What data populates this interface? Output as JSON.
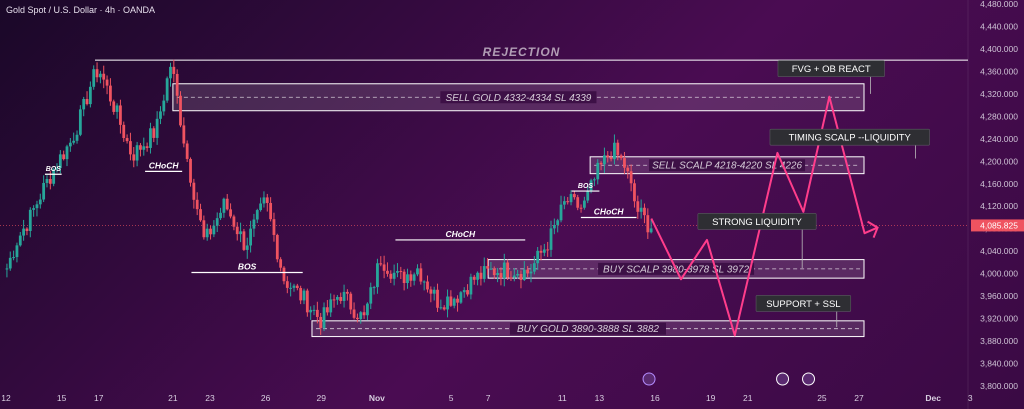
{
  "header": {
    "title": "Gold Spot / U.S. Dollar · 4h · OANDA"
  },
  "colors": {
    "up": "#27a69a",
    "down": "#ef5360",
    "zone_fill": "rgba(255,255,255,0.13)",
    "zone_border": "#ffffff",
    "path": "#ff3d8b",
    "price_badge": "#ef5360"
  },
  "chart_data": {
    "type": "candlestick",
    "ylim": [
      3800,
      4480
    ],
    "yticks": [
      "4,480.000",
      "4,440.000",
      "4,400.000",
      "4,360.000",
      "4,320.000",
      "4,280.000",
      "4,240.000",
      "4,200.000",
      "4,160.000",
      "4,120.000",
      "4,080.000",
      "4,040.000",
      "4,000.000",
      "3,960.000",
      "3,920.000",
      "3,880.000",
      "3,840.000",
      "3,800.000"
    ],
    "xticks": [
      {
        "label": "12",
        "day": 12
      },
      {
        "label": "15",
        "day": 15
      },
      {
        "label": "17",
        "day": 17
      },
      {
        "label": "21",
        "day": 21
      },
      {
        "label": "23",
        "day": 23
      },
      {
        "label": "26",
        "day": 26
      },
      {
        "label": "29",
        "day": 29
      },
      {
        "label": "Nov",
        "day": 32
      },
      {
        "label": "5",
        "day": 36
      },
      {
        "label": "7",
        "day": 38
      },
      {
        "label": "11",
        "day": 42
      },
      {
        "label": "13",
        "day": 44
      },
      {
        "label": "16",
        "day": 47
      },
      {
        "label": "19",
        "day": 50
      },
      {
        "label": "21",
        "day": 52
      },
      {
        "label": "25",
        "day": 56
      },
      {
        "label": "27",
        "day": 58
      },
      {
        "label": "Dec",
        "day": 62
      },
      {
        "label": "3",
        "day": 64
      }
    ],
    "current_price": 4085.825,
    "current_price_label": "4,085.825",
    "rejection_level": 4380,
    "rejection_label": "REJECTION",
    "zones": [
      {
        "label": "SELL GOLD 4332-4334 SL 4339",
        "start_day": 21,
        "end_day": 64,
        "top": 4338,
        "bottom": 4290
      },
      {
        "label": "SELL SCALP 4218-4220 SL 4226",
        "start_day": 43.5,
        "end_day": 64,
        "top": 4208,
        "bottom": 4178
      },
      {
        "label": "BUY SCALP 3980-3978 SL 3972",
        "start_day": 38,
        "end_day": 64,
        "top": 4025,
        "bottom": 3992
      },
      {
        "label": "BUY GOLD 3890-3888 SL 3882",
        "start_day": 28.5,
        "end_day": 64,
        "top": 3916,
        "bottom": 3888
      }
    ],
    "structure_marks": [
      {
        "label": "BOS",
        "start_day": 14.1,
        "end_day": 15.0,
        "price": 4177
      },
      {
        "label": "CHoCH",
        "start_day": 19.5,
        "end_day": 21.5,
        "price": 4182
      },
      {
        "label": "BOS",
        "start_day": 22.0,
        "end_day": 28.0,
        "price": 4002
      },
      {
        "label": "CHoCH",
        "start_day": 33.0,
        "end_day": 40.0,
        "price": 4060
      },
      {
        "label": "BOS",
        "start_day": 42.5,
        "end_day": 44.0,
        "price": 4147
      },
      {
        "label": "CHoCH",
        "start_day": 43.0,
        "end_day": 46.0,
        "price": 4100
      }
    ],
    "callouts": [
      {
        "label": "FVG + OB  REACT",
        "day": 56.5,
        "price": 4365,
        "target_price": 4320
      },
      {
        "label": "TIMING SCALP --LIQUIDITY",
        "day": 57.5,
        "price": 4243,
        "target_price": 4205
      },
      {
        "label": "STRONG  LIQUIDITY",
        "day": 52.5,
        "price": 4093,
        "target_price": 4010
      },
      {
        "label": "SUPPORT + SSL",
        "day": 55.0,
        "price": 3947,
        "target_price": 3905
      }
    ],
    "projected_path": [
      {
        "day": 46.8,
        "price": 4098
      },
      {
        "day": 48.4,
        "price": 3990
      },
      {
        "day": 49.8,
        "price": 4060
      },
      {
        "day": 51.3,
        "price": 3890
      },
      {
        "day": 53.6,
        "price": 4215
      },
      {
        "day": 55.0,
        "price": 4110
      },
      {
        "day": 56.4,
        "price": 4315
      },
      {
        "day": 58.3,
        "price": 4072
      },
      {
        "day": 59.0,
        "price": 4082
      }
    ],
    "anchors": [
      {
        "day": 17.0,
        "price": 4366
      },
      {
        "day": 17.8,
        "price": 4300
      },
      {
        "day": 18.8,
        "price": 4210
      },
      {
        "day": 20.1,
        "price": 4255
      },
      {
        "day": 20.9,
        "price": 4376
      },
      {
        "day": 21.8,
        "price": 4200
      },
      {
        "day": 22.7,
        "price": 4055
      },
      {
        "day": 23.8,
        "price": 4125
      },
      {
        "day": 24.9,
        "price": 4050
      },
      {
        "day": 26.0,
        "price": 4130
      },
      {
        "day": 27.0,
        "price": 3990
      },
      {
        "day": 28.2,
        "price": 3950
      },
      {
        "day": 29.0,
        "price": 3916
      },
      {
        "day": 30.0,
        "price": 3966
      },
      {
        "day": 31.3,
        "price": 3918
      },
      {
        "day": 32.2,
        "price": 4028
      },
      {
        "day": 33.2,
        "price": 3990
      },
      {
        "day": 34.2,
        "price": 4010
      },
      {
        "day": 35.3,
        "price": 3950
      },
      {
        "day": 36.3,
        "price": 3960
      },
      {
        "day": 37.2,
        "price": 3990
      },
      {
        "day": 38.2,
        "price": 4005
      },
      {
        "day": 39.3,
        "price": 4008
      },
      {
        "day": 40.2,
        "price": 4002
      },
      {
        "day": 41.3,
        "price": 4060
      },
      {
        "day": 42.2,
        "price": 4130
      },
      {
        "day": 43.1,
        "price": 4116
      },
      {
        "day": 43.9,
        "price": 4180
      },
      {
        "day": 44.7,
        "price": 4222
      },
      {
        "day": 45.4,
        "price": 4190
      },
      {
        "day": 46.0,
        "price": 4115
      },
      {
        "day": 46.7,
        "price": 4085
      }
    ],
    "candle_step": 0.18
  }
}
